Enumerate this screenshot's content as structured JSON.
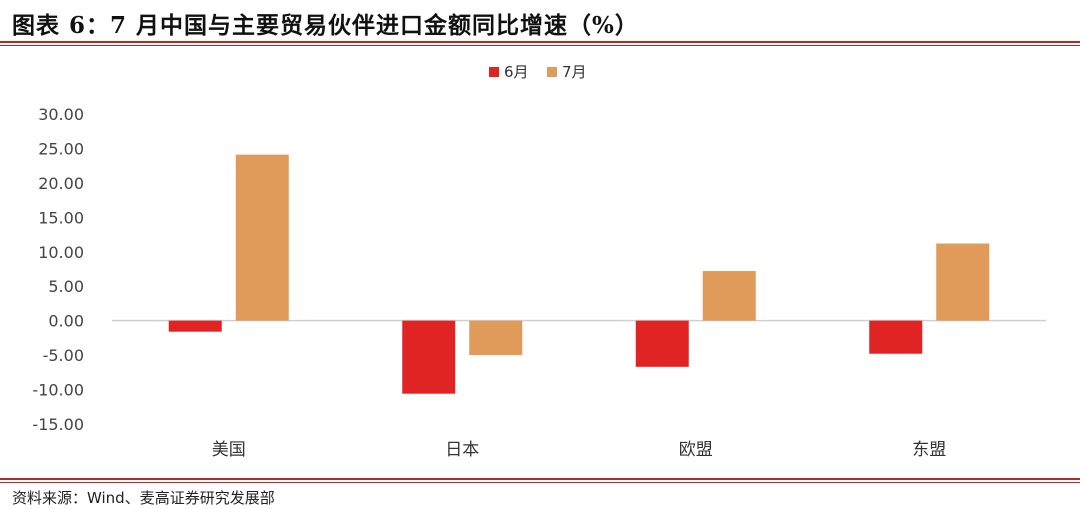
{
  "header": {
    "title": "图表 6：7 月中国与主要贸易伙伴进口金额同比增速（%）"
  },
  "footer": {
    "source": "资料来源：Wind、麦高证券研究发展部"
  },
  "colors": {
    "series_6": "#e02424",
    "series_7": "#e09a5a",
    "rule": "#b22a2a"
  },
  "chart_data": {
    "type": "bar",
    "categories": [
      "美国",
      "日本",
      "欧盟",
      "东盟"
    ],
    "series": [
      {
        "name": "6月",
        "values": [
          -1.6,
          -10.6,
          -6.7,
          -4.8
        ]
      },
      {
        "name": "7月",
        "values": [
          24.1,
          -5.0,
          7.2,
          11.2
        ]
      }
    ],
    "ylim": [
      -15,
      30
    ],
    "yticks": [
      "30.00",
      "25.00",
      "20.00",
      "15.00",
      "10.00",
      "5.00",
      "0.00",
      "-5.00",
      "-10.00",
      "-15.00"
    ],
    "grid": false,
    "legend_position": "top-center"
  }
}
